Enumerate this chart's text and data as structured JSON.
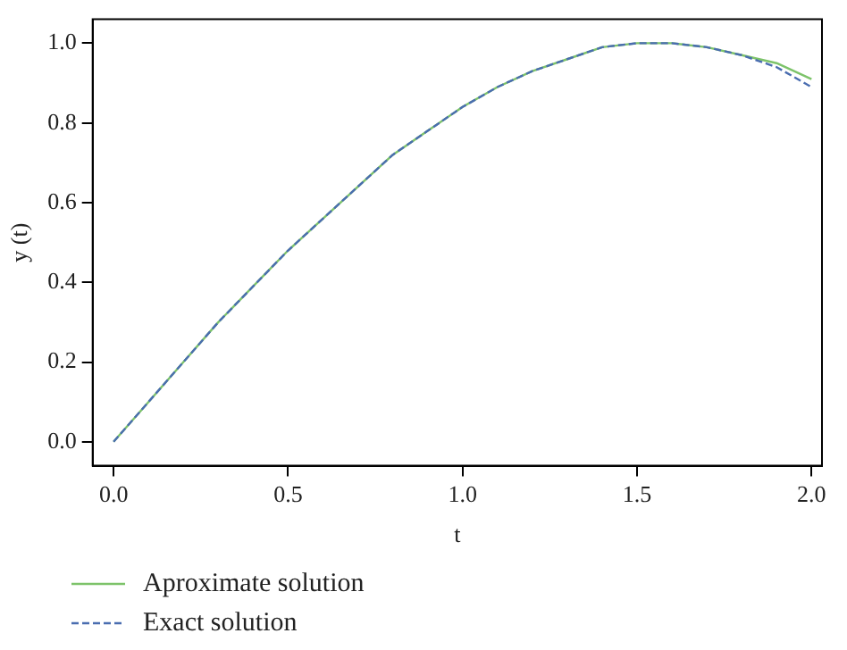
{
  "chart_data": {
    "type": "line",
    "xlabel": "t",
    "ylabel": "y (t)",
    "x": [
      0,
      0.1,
      0.2,
      0.3,
      0.4,
      0.5,
      0.6,
      0.7,
      0.8,
      0.9,
      1.0,
      1.1,
      1.2,
      1.3,
      1.4,
      1.5,
      1.6,
      1.7,
      1.8,
      1.9,
      2.0
    ],
    "series": [
      {
        "name": "Aproximate solution",
        "color": "#7dc36a",
        "line_style": "solid",
        "values": [
          0,
          0.1,
          0.2,
          0.3,
          0.39,
          0.48,
          0.56,
          0.64,
          0.72,
          0.78,
          0.84,
          0.89,
          0.93,
          0.96,
          0.99,
          1.0,
          1.0,
          0.99,
          0.97,
          0.95,
          0.91
        ]
      },
      {
        "name": "Exact solution",
        "color": "#4a6db0",
        "line_style": "dashed",
        "values": [
          0,
          0.1,
          0.2,
          0.3,
          0.39,
          0.48,
          0.56,
          0.64,
          0.72,
          0.78,
          0.84,
          0.89,
          0.93,
          0.96,
          0.99,
          1.0,
          1.0,
          0.99,
          0.97,
          0.94,
          0.89
        ]
      }
    ],
    "xlim": [
      -0.06,
      2.03
    ],
    "ylim": [
      -0.06,
      1.06
    ],
    "xticks": [
      {
        "value": 0,
        "label": "0.0"
      },
      0.5,
      {
        "value": 1,
        "label": "1.0"
      },
      1.5,
      {
        "value": 2,
        "label": "2.0"
      }
    ],
    "yticks": [
      {
        "value": 0,
        "label": "0.0"
      },
      0.2,
      0.4,
      0.6,
      0.8,
      {
        "value": 1,
        "label": "1.0"
      }
    ],
    "grid": false,
    "legend": "bottom left",
    "marker": "none"
  }
}
